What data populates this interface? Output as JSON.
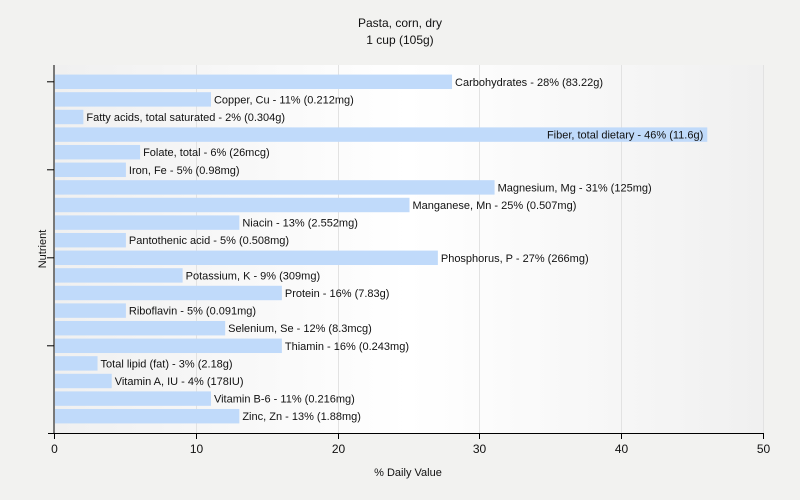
{
  "chart_data": {
    "type": "bar",
    "orientation": "horizontal",
    "title": "Pasta, corn, dry",
    "subtitle": "1 cup (105g)",
    "xlabel": "% Daily Value",
    "ylabel": "Nutrient",
    "xlim": [
      0,
      50
    ],
    "xticks": [
      0,
      10,
      20,
      30,
      40,
      50
    ],
    "grid": "vertical",
    "bar_color": "#c0dafa",
    "categories": [
      "Carbohydrates",
      "Copper, Cu",
      "Fatty acids, total saturated",
      "Fiber, total dietary",
      "Folate, total",
      "Iron, Fe",
      "Magnesium, Mg",
      "Manganese, Mn",
      "Niacin",
      "Pantothenic acid",
      "Phosphorus, P",
      "Potassium, K",
      "Protein",
      "Riboflavin",
      "Selenium, Se",
      "Thiamin",
      "Total lipid (fat)",
      "Vitamin A, IU",
      "Vitamin B-6",
      "Zinc, Zn"
    ],
    "values": [
      28,
      11,
      2,
      46,
      6,
      5,
      31,
      25,
      13,
      5,
      27,
      9,
      16,
      5,
      12,
      16,
      3,
      4,
      11,
      13
    ],
    "labels": [
      "Carbohydrates - 28% (83.22g)",
      "Copper, Cu - 11% (0.212mg)",
      "Fatty acids, total saturated - 2% (0.304g)",
      "Fiber, total dietary - 46% (11.6g)",
      "Folate, total - 6% (26mcg)",
      "Iron, Fe - 5% (0.98mg)",
      "Magnesium, Mg - 31% (125mg)",
      "Manganese, Mn - 25% (0.507mg)",
      "Niacin - 13% (2.552mg)",
      "Pantothenic acid - 5% (0.508mg)",
      "Phosphorus, P - 27% (266mg)",
      "Potassium, K - 9% (309mg)",
      "Protein - 16% (7.83g)",
      "Riboflavin - 5% (0.091mg)",
      "Selenium, Se - 12% (8.3mcg)",
      "Thiamin - 16% (0.243mg)",
      "Total lipid (fat) - 3% (2.18g)",
      "Vitamin A, IU - 4% (178IU)",
      "Vitamin B-6 - 11% (0.216mg)",
      "Zinc, Zn - 13% (1.88mg)"
    ]
  }
}
